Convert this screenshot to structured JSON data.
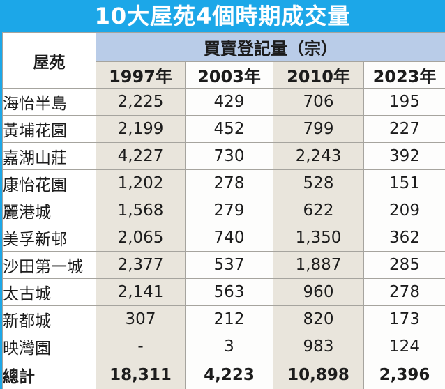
{
  "title": "10大屋苑4個時期成交量",
  "table": {
    "estate_header": "屋苑",
    "group_header": "買賣登記量（宗）",
    "year_headers": [
      "1997年",
      "2003年",
      "2010年",
      "2023年"
    ],
    "rows": [
      {
        "estate": "海怡半島",
        "values": [
          "2,225",
          "429",
          "706",
          "195"
        ]
      },
      {
        "estate": "黃埔花園",
        "values": [
          "2,199",
          "452",
          "799",
          "227"
        ]
      },
      {
        "estate": "嘉湖山莊",
        "values": [
          "4,227",
          "730",
          "2,243",
          "392"
        ]
      },
      {
        "estate": "康怡花園",
        "values": [
          "1,202",
          "278",
          "528",
          "151"
        ]
      },
      {
        "estate": "麗港城",
        "values": [
          "1,568",
          "279",
          "622",
          "209"
        ]
      },
      {
        "estate": "美孚新邨",
        "values": [
          "2,065",
          "740",
          "1,350",
          "362"
        ]
      },
      {
        "estate": "沙田第一城",
        "values": [
          "2,377",
          "537",
          "1,887",
          "285"
        ]
      },
      {
        "estate": "太古城",
        "values": [
          "2,141",
          "563",
          "960",
          "278"
        ]
      },
      {
        "estate": "新都城",
        "values": [
          "307",
          "212",
          "820",
          "173"
        ]
      },
      {
        "estate": "映灣園",
        "values": [
          "-",
          "3",
          "983",
          "124"
        ]
      }
    ],
    "total": {
      "label": "總計",
      "values": [
        "18,311",
        "4,223",
        "10,898",
        "2,396"
      ]
    }
  },
  "colors": {
    "frame_blue": "#1ca7e8",
    "band_blue": "#b9cce8",
    "beige_column": "#e9e5dc",
    "total_red": "#d42b2b"
  },
  "chart_data": {
    "type": "table",
    "title": "10大屋苑4個時期成交量",
    "group_header": "買賣登記量（宗）",
    "columns": [
      "屋苑",
      "1997年",
      "2003年",
      "2010年",
      "2023年"
    ],
    "rows": [
      [
        "海怡半島",
        2225,
        429,
        706,
        195
      ],
      [
        "黃埔花園",
        2199,
        452,
        799,
        227
      ],
      [
        "嘉湖山莊",
        4227,
        730,
        2243,
        392
      ],
      [
        "康怡花園",
        1202,
        278,
        528,
        151
      ],
      [
        "麗港城",
        1568,
        279,
        622,
        209
      ],
      [
        "美孚新邨",
        2065,
        740,
        1350,
        362
      ],
      [
        "沙田第一城",
        2377,
        537,
        1887,
        285
      ],
      [
        "太古城",
        2141,
        563,
        960,
        278
      ],
      [
        "新都城",
        307,
        212,
        820,
        173
      ],
      [
        "映灣園",
        null,
        3,
        983,
        124
      ]
    ],
    "total": [
      "總計",
      18311,
      4223,
      10898,
      2396
    ]
  }
}
